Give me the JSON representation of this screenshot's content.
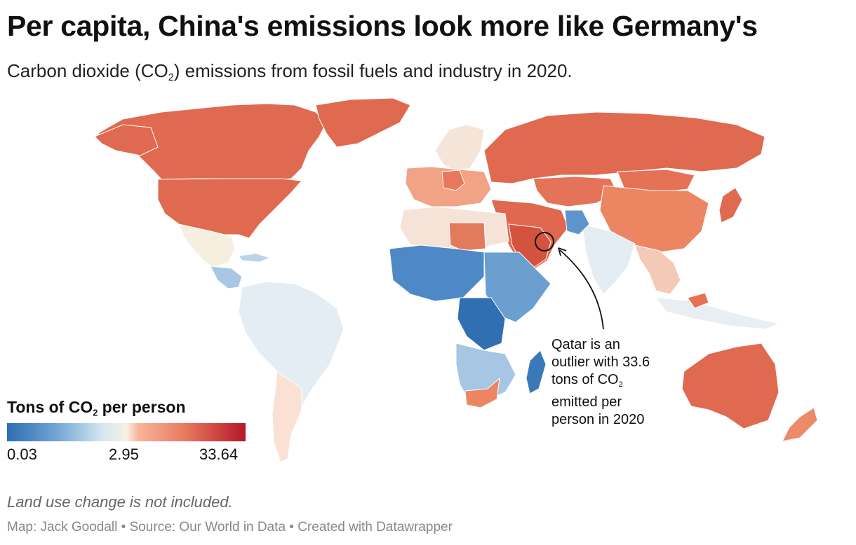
{
  "header": {
    "title": "Per capita, China's emissions look more like Germany's",
    "subtitle_pre": "Carbon dioxide (CO",
    "subtitle_sub": "2",
    "subtitle_post": ") emissions from fossil fuels and industry in 2020."
  },
  "legend": {
    "title_pre": "Tons of CO",
    "title_sub": "2",
    "title_post": " per person",
    "min_label": "0.03",
    "mid_label": "2.95",
    "max_label": "33.64",
    "colors": {
      "very_low": "#2c6db2",
      "low": "#6fa3d3",
      "light_low": "#d4e6f0",
      "mid": "#f6f1e6",
      "light_high": "#f7b59b",
      "high": "#e8785d",
      "very_high": "#b5172a"
    }
  },
  "annotation": {
    "line1": "Qatar is an",
    "line2": "outlier with 33.6",
    "line3_pre": "tons of CO",
    "line3_sub": "2",
    "line4": "emitted per",
    "line5": "person in 2020"
  },
  "notes": {
    "land_use": "Land use change is not included.",
    "footer": "Map: Jack Goodall • Source: Our World in Data • Created with Datawrapper"
  }
}
